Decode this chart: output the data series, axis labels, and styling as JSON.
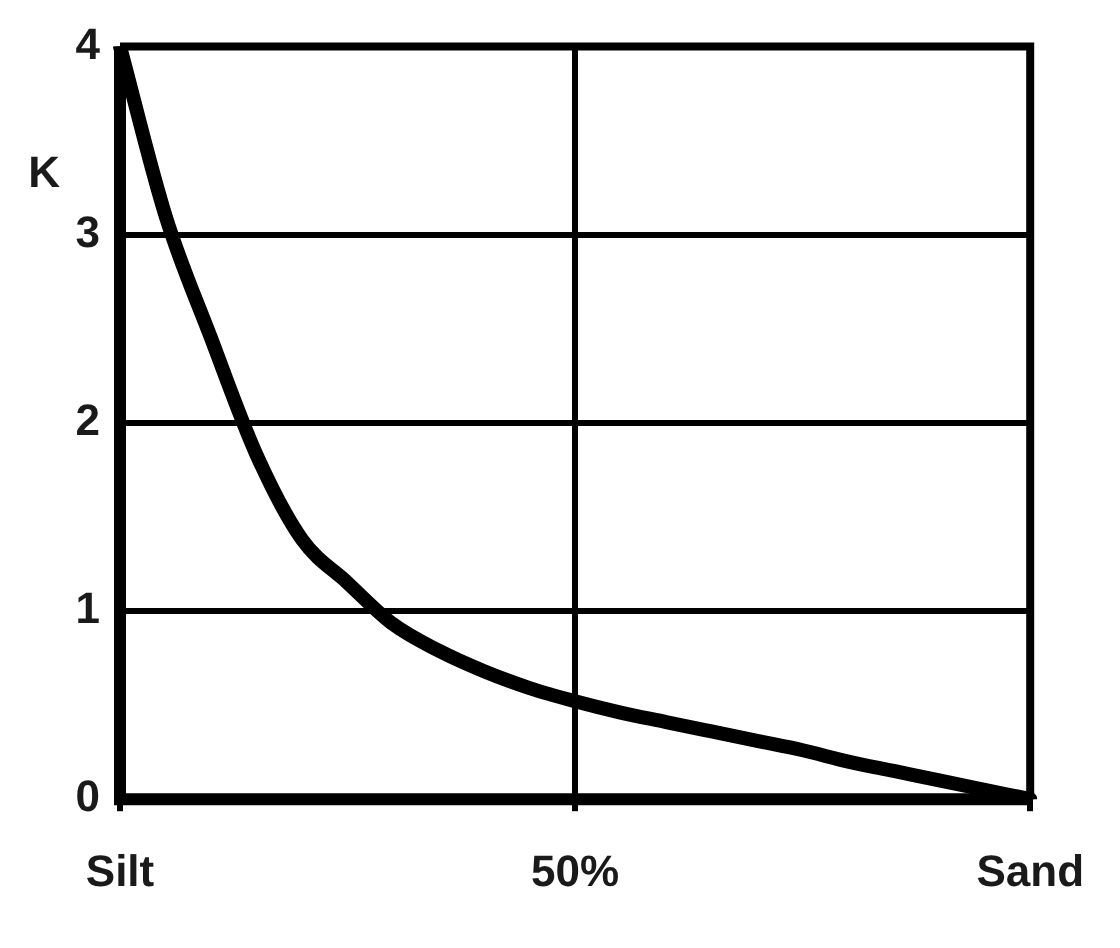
{
  "chart_data": {
    "type": "line",
    "ylabel": "K",
    "categories": [
      "Silt",
      null,
      null,
      null,
      null,
      null,
      null,
      null,
      null,
      null,
      "50%",
      null,
      null,
      null,
      null,
      null,
      null,
      null,
      null,
      null,
      "Sand"
    ],
    "series": [
      {
        "color": "#000000",
        "values": [
          4,
          3.1,
          2.45,
          1.83,
          1.38,
          1.15,
          0.93,
          0.79,
          0.68,
          0.59,
          0.52,
          0.46,
          0.41,
          0.36,
          0.31,
          0.26,
          0.2,
          0.15,
          0.1,
          0.05,
          0
        ]
      }
    ],
    "ylim": [
      0,
      4
    ],
    "yticks": [
      0,
      1,
      2,
      3,
      4
    ],
    "grid": true,
    "legend": false,
    "marker": "none",
    "line_style": "solid"
  }
}
